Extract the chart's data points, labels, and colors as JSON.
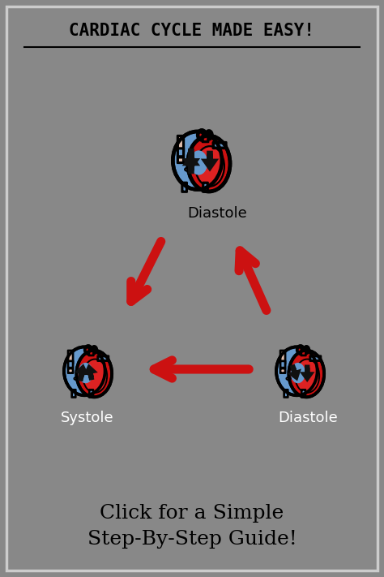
{
  "bg_color": "#888888",
  "border_color": "#cccccc",
  "title": "CARDIAC CYCLE MADE EASY!",
  "subtitle": "Click for a Simple\nStep-By-Step Guide!",
  "label_diastole_top": "Diastole",
  "label_systole": "Systole",
  "label_diastole_bottom": "Diastole",
  "heart_blue": "#6699cc",
  "heart_red": "#cc1111",
  "heart_dark": "#111111",
  "heart_outline": "#000000",
  "arrow_red": "#cc1111",
  "arrow_black": "#111111",
  "vena_color": "#ddbbaa",
  "label_color": "#ffffff",
  "label_color_top": "#000000"
}
